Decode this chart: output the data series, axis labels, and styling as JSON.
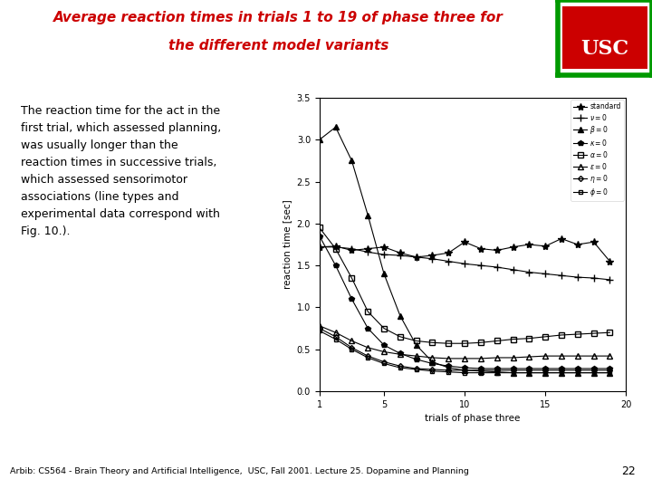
{
  "title_line1": "Average reaction times in trials 1 to 19 of phase three for",
  "title_line2": "the different model variants",
  "xlabel": "trials of phase three",
  "ylabel": "reaction time [sec]",
  "xlim": [
    1,
    20
  ],
  "ylim": [
    0,
    3.5
  ],
  "yticks": [
    0,
    0.5,
    1.0,
    1.5,
    2.0,
    2.5,
    3.0,
    3.5
  ],
  "xticks": [
    1,
    5,
    10,
    15,
    20
  ],
  "bg_color": "#ffffff",
  "title_color": "#cc0000",
  "footer_text": "Arbib: CS564 - Brain Theory and Artificial Intelligence,  USC, Fall 2001. Lecture 25. Dopamine and Planning",
  "footer_num": "22",
  "body_text": "The reaction time for the act in the\nfirst trial, which assessed planning,\nwas usually longer than the\nreaction times in successive trials,\nwhich assessed sensorimotor\nassociations (line types and\nexperimental data correspond with\nFig. 10.).",
  "series": {
    "standard": {
      "x": [
        1,
        2,
        3,
        4,
        5,
        6,
        7,
        8,
        9,
        10,
        11,
        12,
        13,
        14,
        15,
        16,
        17,
        18,
        19
      ],
      "y": [
        1.72,
        1.73,
        1.68,
        1.7,
        1.72,
        1.65,
        1.6,
        1.62,
        1.65,
        1.78,
        1.7,
        1.68,
        1.72,
        1.75,
        1.73,
        1.82,
        1.75,
        1.78,
        1.55
      ],
      "marker": "*",
      "linestyle": "-",
      "color": "#000000",
      "markersize": 6,
      "fillstyle": "full"
    },
    "gamma0": {
      "x": [
        1,
        2,
        3,
        4,
        5,
        6,
        7,
        8,
        9,
        10,
        11,
        12,
        13,
        14,
        15,
        16,
        17,
        18,
        19
      ],
      "y": [
        1.72,
        1.72,
        1.7,
        1.66,
        1.63,
        1.62,
        1.6,
        1.58,
        1.55,
        1.52,
        1.5,
        1.48,
        1.45,
        1.42,
        1.4,
        1.38,
        1.36,
        1.35,
        1.33
      ],
      "marker": "+",
      "linestyle": "-",
      "color": "#000000",
      "markersize": 6,
      "fillstyle": "full"
    },
    "beta0": {
      "x": [
        1,
        2,
        3,
        4,
        5,
        6,
        7,
        8,
        9,
        10,
        11,
        12,
        13,
        14,
        15,
        16,
        17,
        18,
        19
      ],
      "y": [
        3.0,
        3.15,
        2.75,
        2.1,
        1.4,
        0.9,
        0.55,
        0.35,
        0.28,
        0.25,
        0.24,
        0.23,
        0.22,
        0.22,
        0.22,
        0.22,
        0.22,
        0.22,
        0.22
      ],
      "marker": "^",
      "linestyle": "-",
      "color": "#000000",
      "markersize": 4,
      "fillstyle": "full"
    },
    "kappa0": {
      "x": [
        1,
        2,
        3,
        4,
        5,
        6,
        7,
        8,
        9,
        10,
        11,
        12,
        13,
        14,
        15,
        16,
        17,
        18,
        19
      ],
      "y": [
        1.85,
        1.5,
        1.1,
        0.75,
        0.55,
        0.45,
        0.38,
        0.33,
        0.3,
        0.28,
        0.27,
        0.27,
        0.27,
        0.27,
        0.27,
        0.27,
        0.27,
        0.27,
        0.27
      ],
      "marker": "p",
      "linestyle": "-",
      "color": "#000000",
      "markersize": 4,
      "fillstyle": "full"
    },
    "alpha0": {
      "x": [
        1,
        2,
        3,
        4,
        5,
        6,
        7,
        8,
        9,
        10,
        11,
        12,
        13,
        14,
        15,
        16,
        17,
        18,
        19
      ],
      "y": [
        1.95,
        1.7,
        1.35,
        0.95,
        0.75,
        0.65,
        0.6,
        0.58,
        0.57,
        0.57,
        0.58,
        0.6,
        0.62,
        0.63,
        0.65,
        0.67,
        0.68,
        0.69,
        0.7
      ],
      "marker": "s",
      "linestyle": "-",
      "color": "#000000",
      "markersize": 4,
      "fillstyle": "none"
    },
    "epsilon0": {
      "x": [
        1,
        2,
        3,
        4,
        5,
        6,
        7,
        8,
        9,
        10,
        11,
        12,
        13,
        14,
        15,
        16,
        17,
        18,
        19
      ],
      "y": [
        0.78,
        0.7,
        0.6,
        0.52,
        0.47,
        0.44,
        0.42,
        0.4,
        0.39,
        0.39,
        0.39,
        0.4,
        0.4,
        0.41,
        0.42,
        0.42,
        0.42,
        0.42,
        0.42
      ],
      "marker": "^",
      "linestyle": "-",
      "color": "#000000",
      "markersize": 4,
      "fillstyle": "none"
    },
    "eta0": {
      "x": [
        1,
        2,
        3,
        4,
        5,
        6,
        7,
        8,
        9,
        10,
        11,
        12,
        13,
        14,
        15,
        16,
        17,
        18,
        19
      ],
      "y": [
        0.75,
        0.65,
        0.52,
        0.42,
        0.35,
        0.3,
        0.27,
        0.26,
        0.25,
        0.25,
        0.25,
        0.25,
        0.25,
        0.25,
        0.25,
        0.25,
        0.25,
        0.25,
        0.25
      ],
      "marker": "D",
      "linestyle": "-",
      "color": "#000000",
      "markersize": 3,
      "fillstyle": "none"
    },
    "phi0": {
      "x": [
        1,
        2,
        3,
        4,
        5,
        6,
        7,
        8,
        9,
        10,
        11,
        12,
        13,
        14,
        15,
        16,
        17,
        18,
        19
      ],
      "y": [
        0.72,
        0.62,
        0.5,
        0.4,
        0.33,
        0.28,
        0.26,
        0.24,
        0.23,
        0.22,
        0.22,
        0.22,
        0.22,
        0.22,
        0.22,
        0.22,
        0.22,
        0.22,
        0.22
      ],
      "marker": "s",
      "linestyle": "-",
      "color": "#000000",
      "markersize": 3,
      "fillstyle": "none"
    }
  }
}
